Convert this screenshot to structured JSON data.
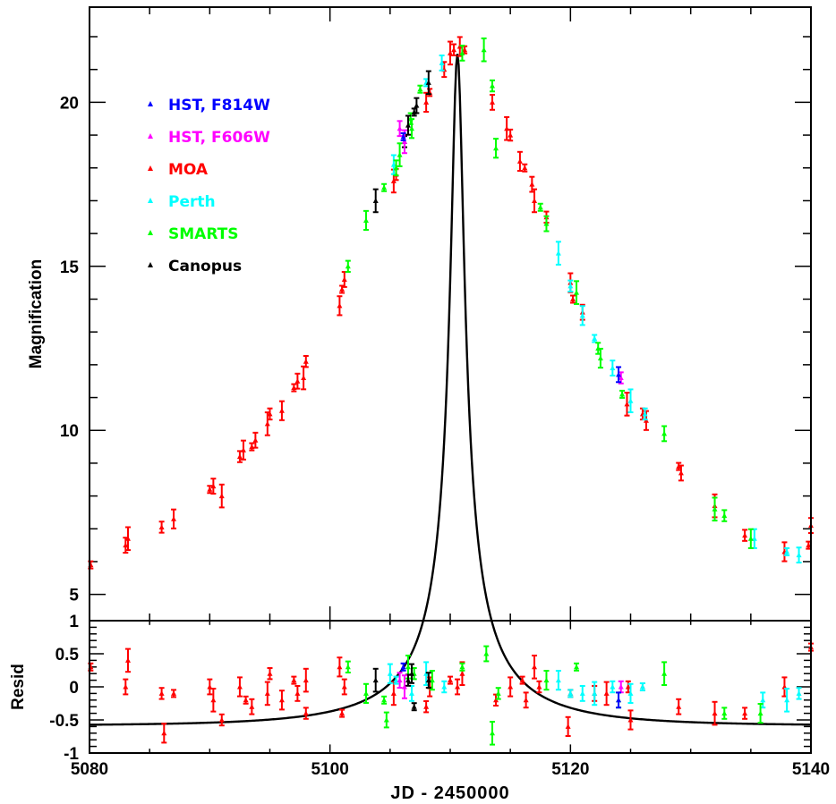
{
  "chart_data": [
    {
      "type": "scatter",
      "panel": "main",
      "xlabel": "JD - 2450000",
      "ylabel": "Magnification",
      "xlim": [
        5080,
        5140
      ],
      "ylim": [
        4.2,
        22.9
      ],
      "xticks": [
        "5080",
        "5100",
        "5120",
        "5140"
      ],
      "yticks": [
        "5",
        "10",
        "15",
        "20"
      ],
      "legend_placement": "top-left",
      "series": [
        {
          "name": "HST, F814W",
          "color": "#0000ff",
          "points": [
            [
              5106.1,
              18.95
            ],
            [
              5124.0,
              11.7
            ]
          ]
        },
        {
          "name": "HST, F606W",
          "color": "#ff00ff",
          "points": [
            [
              5105.8,
              19.2
            ],
            [
              5106.2,
              18.8
            ],
            [
              5124.2,
              11.6
            ]
          ]
        },
        {
          "name": "MOA",
          "color": "#ff0000",
          "points": [
            [
              5080.1,
              5.9
            ],
            [
              5083.0,
              6.5
            ],
            [
              5083.2,
              6.7
            ],
            [
              5086.0,
              7.05
            ],
            [
              5087.0,
              7.3
            ],
            [
              5090.0,
              8.2
            ],
            [
              5090.3,
              8.3
            ],
            [
              5091.0,
              8.0
            ],
            [
              5092.5,
              9.2
            ],
            [
              5092.8,
              9.4
            ],
            [
              5093.5,
              9.5
            ],
            [
              5093.8,
              9.7
            ],
            [
              5094.8,
              10.2
            ],
            [
              5095.0,
              10.5
            ],
            [
              5096.0,
              10.6
            ],
            [
              5097.0,
              11.3
            ],
            [
              5097.3,
              11.5
            ],
            [
              5097.8,
              11.6
            ],
            [
              5098.0,
              12.1
            ],
            [
              5100.8,
              13.8
            ],
            [
              5101.0,
              14.3
            ],
            [
              5101.2,
              14.6
            ],
            [
              5105.3,
              17.6
            ],
            [
              5105.5,
              17.8
            ],
            [
              5108.0,
              20.0
            ],
            [
              5108.3,
              20.3
            ],
            [
              5109.5,
              21.0
            ],
            [
              5110.0,
              21.5
            ],
            [
              5110.3,
              21.6
            ],
            [
              5110.8,
              21.7
            ],
            [
              5111.2,
              21.6
            ],
            [
              5113.5,
              20.0
            ],
            [
              5114.7,
              19.2
            ],
            [
              5115.0,
              19.0
            ],
            [
              5115.8,
              18.2
            ],
            [
              5116.2,
              18.0
            ],
            [
              5116.8,
              17.5
            ],
            [
              5117.0,
              17.0
            ],
            [
              5118.0,
              16.5
            ],
            [
              5120.0,
              14.5
            ],
            [
              5120.2,
              14.0
            ],
            [
              5121.0,
              13.6
            ],
            [
              5124.7,
              10.8
            ],
            [
              5126.0,
              10.5
            ],
            [
              5126.3,
              10.3
            ],
            [
              5129.0,
              8.9
            ],
            [
              5129.2,
              8.7
            ],
            [
              5132.0,
              7.7
            ],
            [
              5134.5,
              6.8
            ],
            [
              5137.8,
              6.3
            ],
            [
              5139.8,
              6.5
            ],
            [
              5140.0,
              7.1
            ]
          ]
        },
        {
          "name": "Perth",
          "color": "#00ffff",
          "points": [
            [
              5105.3,
              18.1
            ],
            [
              5108.0,
              20.6
            ],
            [
              5109.3,
              21.2
            ],
            [
              5119.0,
              15.4
            ],
            [
              5120.0,
              14.4
            ],
            [
              5121.0,
              13.5
            ],
            [
              5122.0,
              12.8
            ],
            [
              5123.5,
              11.9
            ],
            [
              5125.0,
              10.9
            ],
            [
              5126.2,
              10.5
            ],
            [
              5135.3,
              6.7
            ],
            [
              5138.0,
              6.3
            ],
            [
              5139.0,
              6.2
            ]
          ]
        },
        {
          "name": "SMARTS",
          "color": "#00ff00",
          "points": [
            [
              5101.5,
              15.0
            ],
            [
              5103.0,
              16.4
            ],
            [
              5104.5,
              17.4
            ],
            [
              5105.5,
              18.0
            ],
            [
              5105.8,
              18.4
            ],
            [
              5106.7,
              19.5
            ],
            [
              5106.8,
              19.2
            ],
            [
              5107.5,
              20.4
            ],
            [
              5111.0,
              21.5
            ],
            [
              5112.8,
              21.6
            ],
            [
              5113.5,
              20.5
            ],
            [
              5113.8,
              18.6
            ],
            [
              5117.5,
              16.8
            ],
            [
              5118.0,
              16.3
            ],
            [
              5120.5,
              14.2
            ],
            [
              5122.3,
              12.5
            ],
            [
              5122.5,
              12.2
            ],
            [
              5124.3,
              11.1
            ],
            [
              5127.8,
              9.9
            ],
            [
              5132.0,
              7.6
            ],
            [
              5132.8,
              7.4
            ],
            [
              5135.0,
              6.7
            ]
          ]
        },
        {
          "name": "Canopus",
          "color": "#000000",
          "points": [
            [
              5103.8,
              17.0
            ],
            [
              5106.2,
              18.8
            ],
            [
              5106.5,
              19.3
            ],
            [
              5107.0,
              19.7
            ],
            [
              5107.2,
              19.9
            ],
            [
              5108.2,
              20.6
            ]
          ]
        }
      ],
      "model_curve": {
        "color": "#000000",
        "t0": 5110.6,
        "u0": 0.0466,
        "tE": 11.9
      }
    },
    {
      "type": "scatter",
      "panel": "residuals",
      "ylabel": "Resid",
      "xlim": [
        5080,
        5140
      ],
      "ylim": [
        -1,
        1
      ],
      "yticks": [
        "-1",
        "-0.5",
        "0",
        "0.5",
        "1"
      ],
      "series": [
        {
          "name": "HST, F814W",
          "color": "#0000ff",
          "points": [
            [
              5106.1,
              0.3
            ],
            [
              5124.0,
              -0.2
            ]
          ]
        },
        {
          "name": "HST, F606W",
          "color": "#ff00ff",
          "points": [
            [
              5105.8,
              0.1
            ],
            [
              5106.2,
              0.0
            ],
            [
              5124.2,
              0.0
            ]
          ]
        },
        {
          "name": "MOA",
          "color": "#ff0000",
          "points": [
            [
              5080.1,
              0.3
            ],
            [
              5083.0,
              0.0
            ],
            [
              5083.2,
              0.4
            ],
            [
              5086.0,
              -0.1
            ],
            [
              5086.2,
              -0.7
            ],
            [
              5087.0,
              -0.1
            ],
            [
              5090.0,
              0.0
            ],
            [
              5090.3,
              -0.2
            ],
            [
              5091.0,
              -0.5
            ],
            [
              5092.5,
              0.0
            ],
            [
              5093.0,
              -0.2
            ],
            [
              5093.5,
              -0.3
            ],
            [
              5094.8,
              -0.1
            ],
            [
              5095.0,
              0.2
            ],
            [
              5096.0,
              -0.2
            ],
            [
              5097.0,
              0.1
            ],
            [
              5097.3,
              -0.1
            ],
            [
              5098.0,
              0.1
            ],
            [
              5098.0,
              -0.4
            ],
            [
              5100.8,
              0.3
            ],
            [
              5101.0,
              -0.4
            ],
            [
              5101.2,
              0.0
            ],
            [
              5105.3,
              -0.1
            ],
            [
              5108.0,
              -0.3
            ],
            [
              5108.3,
              0.0
            ],
            [
              5110.0,
              0.1
            ],
            [
              5110.6,
              0.0
            ],
            [
              5111.0,
              0.2
            ],
            [
              5113.8,
              -0.2
            ],
            [
              5115.0,
              0.0
            ],
            [
              5116.0,
              0.1
            ],
            [
              5116.3,
              -0.2
            ],
            [
              5117.0,
              0.3
            ],
            [
              5117.4,
              0.0
            ],
            [
              5119.8,
              -0.6
            ],
            [
              5120.0,
              -0.1
            ],
            [
              5122.0,
              -0.1
            ],
            [
              5123.0,
              -0.1
            ],
            [
              5124.8,
              0.0
            ],
            [
              5125.0,
              -0.5
            ],
            [
              5126.0,
              0.0
            ],
            [
              5129.0,
              -0.3
            ],
            [
              5132.0,
              -0.4
            ],
            [
              5134.5,
              -0.4
            ],
            [
              5137.8,
              0.0
            ],
            [
              5140.0,
              0.6
            ]
          ]
        },
        {
          "name": "Perth",
          "color": "#00ffff",
          "points": [
            [
              5105.0,
              0.2
            ],
            [
              5105.5,
              0.1
            ],
            [
              5106.8,
              -0.1
            ],
            [
              5108.0,
              0.2
            ],
            [
              5109.5,
              0.0
            ],
            [
              5119.0,
              0.1
            ],
            [
              5120.0,
              -0.1
            ],
            [
              5121.0,
              -0.1
            ],
            [
              5122.0,
              -0.1
            ],
            [
              5123.5,
              0.0
            ],
            [
              5125.0,
              -0.1
            ],
            [
              5126.0,
              0.0
            ],
            [
              5136.0,
              -0.2
            ],
            [
              5138.0,
              -0.2
            ],
            [
              5139.0,
              -0.1
            ]
          ]
        },
        {
          "name": "SMARTS",
          "color": "#00ff00",
          "points": [
            [
              5101.5,
              0.3
            ],
            [
              5103.0,
              -0.1
            ],
            [
              5104.5,
              -0.2
            ],
            [
              5104.7,
              -0.5
            ],
            [
              5106.5,
              0.3
            ],
            [
              5107.0,
              0.2
            ],
            [
              5108.5,
              0.1
            ],
            [
              5111.0,
              0.3
            ],
            [
              5113.0,
              0.5
            ],
            [
              5113.5,
              -0.7
            ],
            [
              5114.0,
              -0.1
            ],
            [
              5118.0,
              0.1
            ],
            [
              5120.5,
              0.3
            ],
            [
              5124.0,
              -0.2
            ],
            [
              5127.8,
              0.2
            ],
            [
              5132.8,
              -0.4
            ],
            [
              5135.8,
              -0.4
            ]
          ]
        },
        {
          "name": "Canopus",
          "color": "#000000",
          "points": [
            [
              5103.8,
              0.1
            ],
            [
              5106.5,
              0.1
            ],
            [
              5106.8,
              0.2
            ],
            [
              5107.0,
              -0.3
            ],
            [
              5108.2,
              0.1
            ]
          ]
        }
      ]
    }
  ]
}
